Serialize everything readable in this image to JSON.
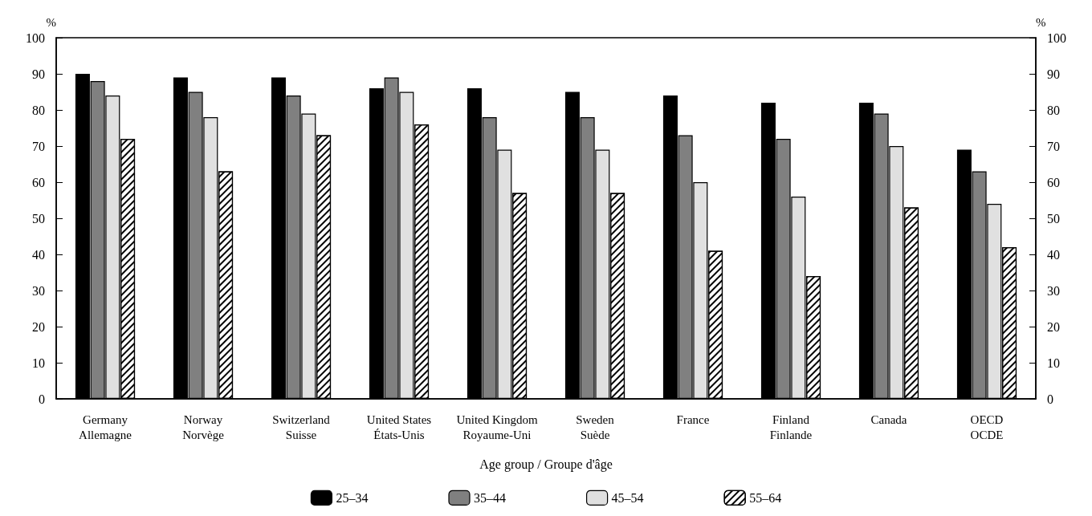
{
  "chart_data": {
    "type": "bar",
    "categories": [
      "Germany\nAllemagne",
      "Norway\nNorvège",
      "Switzerland\nSuisse",
      "United States\nÉtats-Unis",
      "United Kingdom\nRoyaume-Uni",
      "Sweden\nSuède",
      "France",
      "Finland\nFinlande",
      "Canada",
      "OECD\nOCDE"
    ],
    "series": [
      {
        "name": "25–34",
        "color": "#000000",
        "values": [
          90,
          89,
          89,
          86,
          86,
          85,
          84,
          82,
          82,
          69
        ]
      },
      {
        "name": "35–44",
        "color": "#808080",
        "values": [
          88,
          85,
          84,
          89,
          78,
          78,
          73,
          72,
          79,
          63
        ]
      },
      {
        "name": "45–54",
        "color": "#e0e0e0",
        "values": [
          84,
          78,
          79,
          85,
          69,
          69,
          60,
          56,
          70,
          54
        ]
      },
      {
        "name": "55–64",
        "color": "#ffffff",
        "values": [
          72,
          63,
          73,
          76,
          57,
          57,
          41,
          34,
          53,
          42
        ]
      }
    ],
    "ylabel": "%",
    "y2label": "%",
    "ylim": [
      0,
      100
    ],
    "yticks": [
      0,
      10,
      20,
      30,
      40,
      50,
      60,
      70,
      80,
      90,
      100
    ],
    "y2lim": [
      0,
      100
    ],
    "y2ticks": [
      0,
      10,
      20,
      30,
      40,
      50,
      60,
      70,
      80,
      90,
      100
    ],
    "legend_title": "Age group / Groupe d'âge",
    "legend": "bottom",
    "grid": false
  }
}
